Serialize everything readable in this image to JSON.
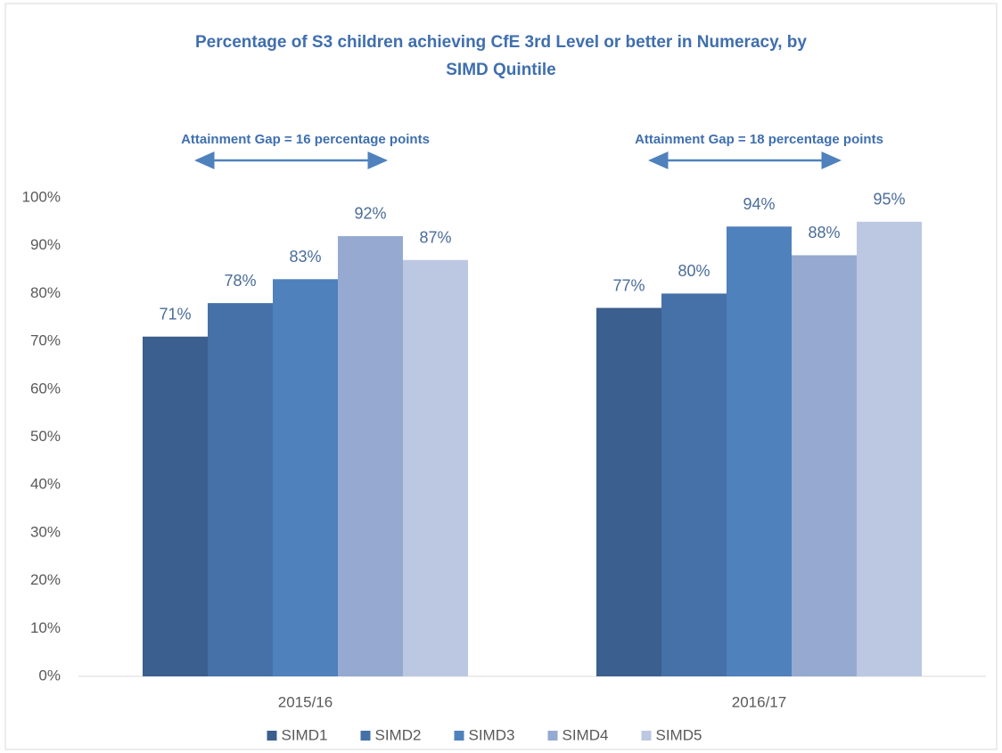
{
  "chart_data": {
    "type": "bar",
    "title": "Percentage of S3 children achieving CfE 3rd Level or better in Numeracy, by SIMD Quintile",
    "categories": [
      "2015/16",
      "2016/17"
    ],
    "series": [
      {
        "name": "SIMD1",
        "color": "#3b5f8e",
        "values": [
          71,
          77
        ],
        "value_labels": [
          "71%",
          "77%"
        ]
      },
      {
        "name": "SIMD2",
        "color": "#4571a8",
        "values": [
          78,
          80
        ],
        "value_labels": [
          "78%",
          "80%"
        ]
      },
      {
        "name": "SIMD3",
        "color": "#4f81bd",
        "values": [
          83,
          94
        ],
        "value_labels": [
          "83%",
          "94%"
        ]
      },
      {
        "name": "SIMD4",
        "color": "#95a9d1",
        "values": [
          92,
          88
        ],
        "value_labels": [
          "92%",
          "88%"
        ]
      },
      {
        "name": "SIMD5",
        "color": "#bcc8e1",
        "values": [
          87,
          95
        ],
        "value_labels": [
          "87%",
          "95%"
        ]
      }
    ],
    "annotations": [
      {
        "text": "Attainment Gap = 16 percentage points"
      },
      {
        "text": "Attainment Gap = 18 percentage points"
      }
    ],
    "ylim": [
      0,
      100
    ],
    "yticks": [
      {
        "value": 0,
        "label": "0%"
      },
      {
        "value": 10,
        "label": "10%"
      },
      {
        "value": 20,
        "label": "20%"
      },
      {
        "value": 30,
        "label": "30%"
      },
      {
        "value": 40,
        "label": "40%"
      },
      {
        "value": 50,
        "label": "50%"
      },
      {
        "value": 60,
        "label": "60%"
      },
      {
        "value": 70,
        "label": "70%"
      },
      {
        "value": 80,
        "label": "80%"
      },
      {
        "value": 90,
        "label": "90%"
      },
      {
        "value": 100,
        "label": "100%"
      }
    ],
    "grid": false,
    "legend": "bottom"
  }
}
